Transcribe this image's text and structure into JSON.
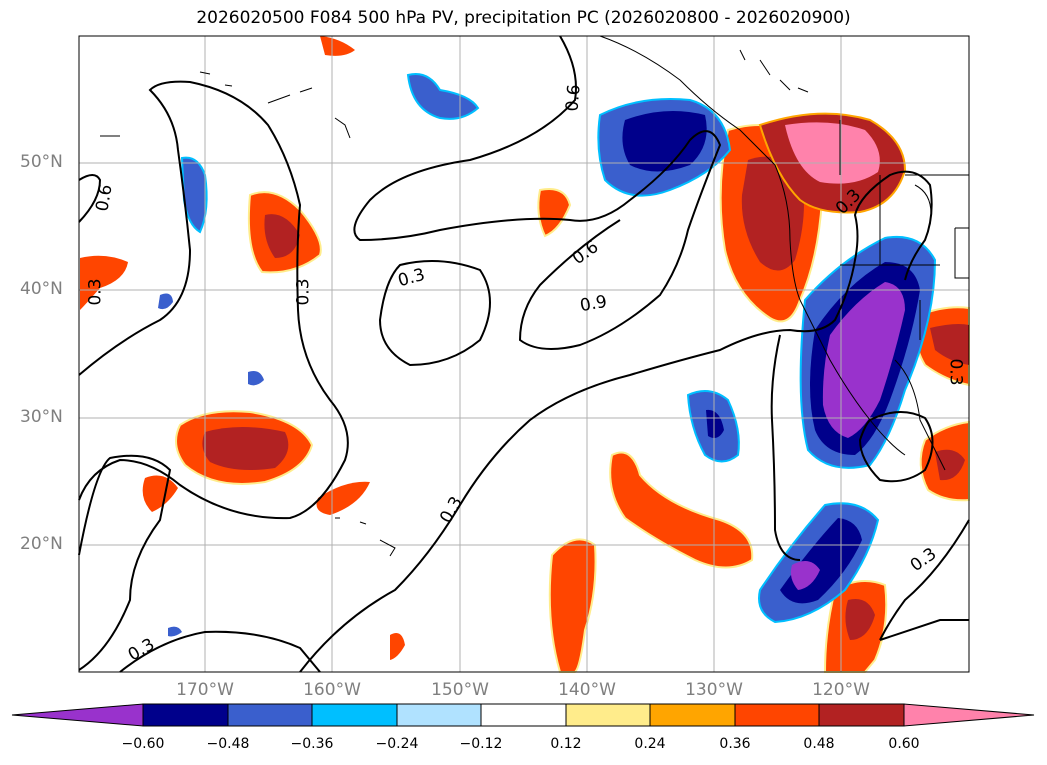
{
  "title": "2026020500 F084 500 hPa PV, precipitation PC (2026020800 - 2026020900)",
  "lat_labels": [
    "50°N",
    "40°N",
    "30°N",
    "20°N"
  ],
  "lon_labels": [
    "170°W",
    "160°W",
    "150°W",
    "140°W",
    "130°W",
    "120°W"
  ],
  "contour_labels": [
    "0.6",
    "0.3",
    "0.3",
    "0.6",
    "0.9",
    "0.3",
    "0.6",
    "0.3",
    "0.3",
    "0.3",
    "0.3",
    "0.3"
  ],
  "colorbar": {
    "tick_labels": [
      "−0.60",
      "−0.48",
      "−0.36",
      "−0.24",
      "−0.12",
      "0.12",
      "0.24",
      "0.36",
      "0.48",
      "0.60"
    ],
    "colors": [
      "#9932cc",
      "#00008b",
      "#3a5fcd",
      "#00bfff",
      "#b0e2ff",
      "#ffffff",
      "#ffec8b",
      "#ffa500",
      "#ff4500",
      "#b22222",
      "#ff82ab"
    ]
  }
}
